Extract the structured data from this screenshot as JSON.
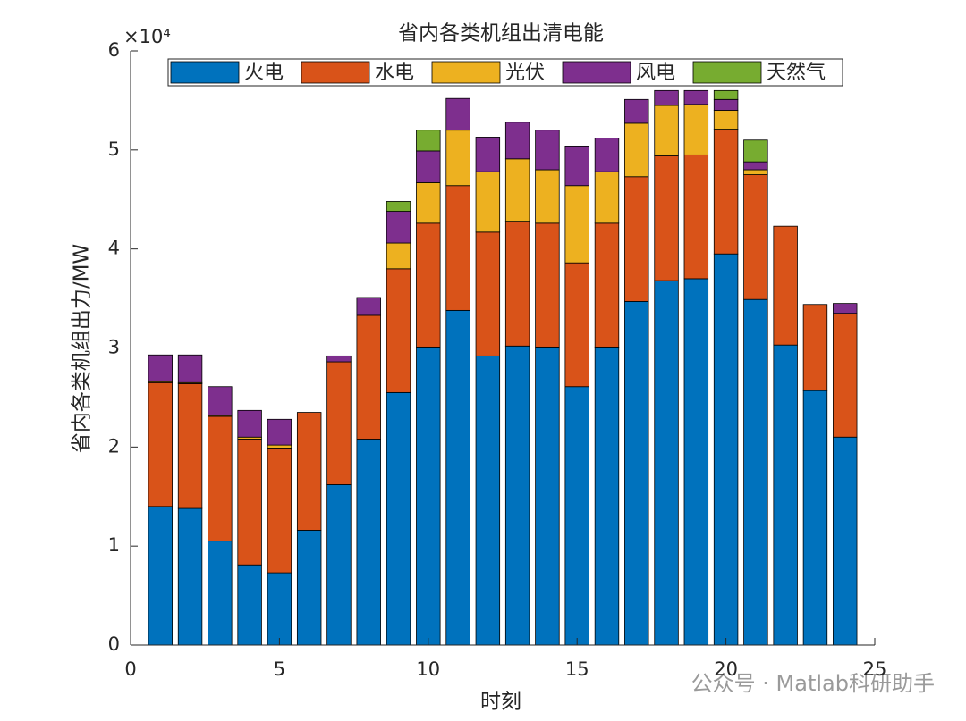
{
  "chart_data": {
    "type": "stacked_bar",
    "title": "省内各类机组出清电能",
    "x_label": "时刻",
    "y_label": "省内各类机组出力/MW",
    "y_exponent": "×10⁴",
    "watermark": "公众号 · Matlab科研助手",
    "x": [
      1,
      2,
      3,
      4,
      5,
      6,
      7,
      8,
      9,
      10,
      11,
      12,
      13,
      14,
      15,
      16,
      17,
      18,
      19,
      20,
      21,
      22,
      23,
      24
    ],
    "series": [
      {
        "name": "火电",
        "color": "#0072BD",
        "values": [
          14000,
          13800,
          10500,
          8100,
          7300,
          11600,
          16200,
          20800,
          25500,
          30100,
          33800,
          29200,
          30200,
          30100,
          26100,
          30100,
          34700,
          36800,
          37000,
          39500,
          34900,
          30300,
          25700,
          21000
        ]
      },
      {
        "name": "水电",
        "color": "#D95319",
        "values": [
          12500,
          12600,
          12600,
          12700,
          12600,
          11900,
          12400,
          12500,
          12500,
          12500,
          12600,
          12500,
          12600,
          12500,
          12500,
          12500,
          12600,
          12600,
          12500,
          12600,
          12600,
          12000,
          8700,
          12500
        ]
      },
      {
        "name": "光伏",
        "color": "#EDB120",
        "values": [
          100,
          100,
          100,
          200,
          300,
          0,
          0,
          0,
          2600,
          4100,
          5600,
          6100,
          6300,
          5400,
          7800,
          5200,
          5400,
          5100,
          5100,
          1900,
          500,
          0,
          0,
          0
        ]
      },
      {
        "name": "风电",
        "color": "#7E2F8E",
        "values": [
          2700,
          2800,
          2900,
          2700,
          2600,
          0,
          600,
          1800,
          3200,
          3200,
          3200,
          3500,
          3700,
          4000,
          4000,
          3400,
          2400,
          1500,
          1400,
          1100,
          800,
          0,
          0,
          1000
        ]
      },
      {
        "name": "天然气",
        "color": "#77AC30",
        "values": [
          0,
          0,
          0,
          0,
          0,
          0,
          0,
          0,
          1000,
          2100,
          0,
          0,
          0,
          0,
          0,
          0,
          0,
          0,
          0,
          900,
          2200,
          0,
          0,
          0
        ]
      }
    ],
    "xlim": [
      0,
      25
    ],
    "xticks": [
      0,
      5,
      10,
      15,
      20,
      25
    ],
    "ylim": [
      0,
      60000
    ],
    "yticks": [
      {
        "value": 0,
        "label": "0"
      },
      {
        "value": 10000,
        "label": "1"
      },
      {
        "value": 20000,
        "label": "2"
      },
      {
        "value": 30000,
        "label": "3"
      },
      {
        "value": 40000,
        "label": "4"
      },
      {
        "value": 50000,
        "label": "5"
      },
      {
        "value": 60000,
        "label": "6"
      }
    ],
    "bar_width": 0.8,
    "legend": "top"
  }
}
